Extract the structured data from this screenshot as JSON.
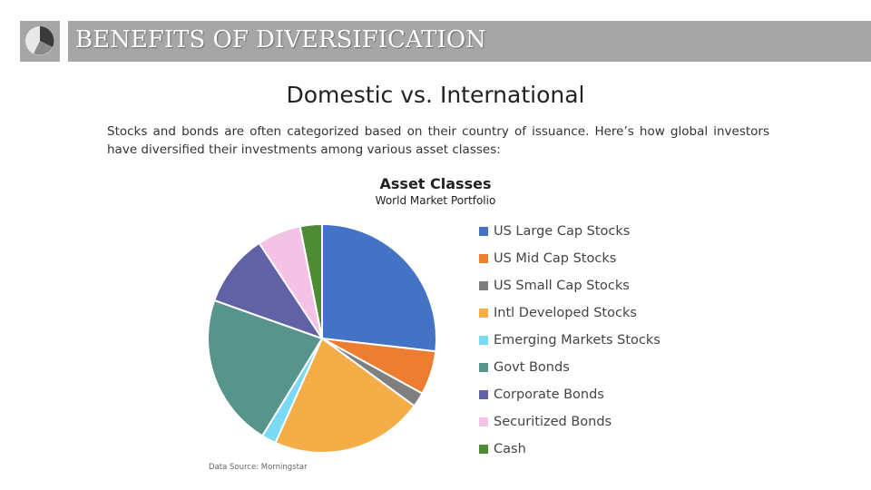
{
  "header": {
    "title": "BENEFITS OF DIVERSIFICATION",
    "logo_icon": "pie-logo-icon"
  },
  "slide": {
    "subtitle": "Domestic vs. International",
    "body": "Stocks and bonds are often categorized based on their country of issuance. Here’s how global investors have diversified their investments among various asset classes:",
    "source": "Data Source: Morningstar"
  },
  "chart_data": {
    "type": "pie",
    "title": "Asset Classes",
    "subtitle": "World Market Portfolio",
    "legend_position": "right",
    "slices": [
      {
        "label": "US Large Cap Stocks",
        "value": 26,
        "color": "#4472c4"
      },
      {
        "label": "US Mid Cap Stocks",
        "value": 6,
        "color": "#ed7d31"
      },
      {
        "label": "US Small Cap Stocks",
        "value": 2,
        "color": "#7f7f7f"
      },
      {
        "label": "Intl Developed Stocks",
        "value": 21,
        "color": "#f4ad47"
      },
      {
        "label": "Emerging Markets Stocks",
        "value": 2,
        "color": "#7ad9f5"
      },
      {
        "label": "Govt Bonds",
        "value": 21,
        "color": "#56948c"
      },
      {
        "label": "Corporate Bonds",
        "value": 10,
        "color": "#6161a6"
      },
      {
        "label": "Securitized Bonds",
        "value": 6,
        "color": "#f4c2e6"
      },
      {
        "label": "Cash",
        "value": 3,
        "color": "#4f8a34"
      }
    ]
  }
}
